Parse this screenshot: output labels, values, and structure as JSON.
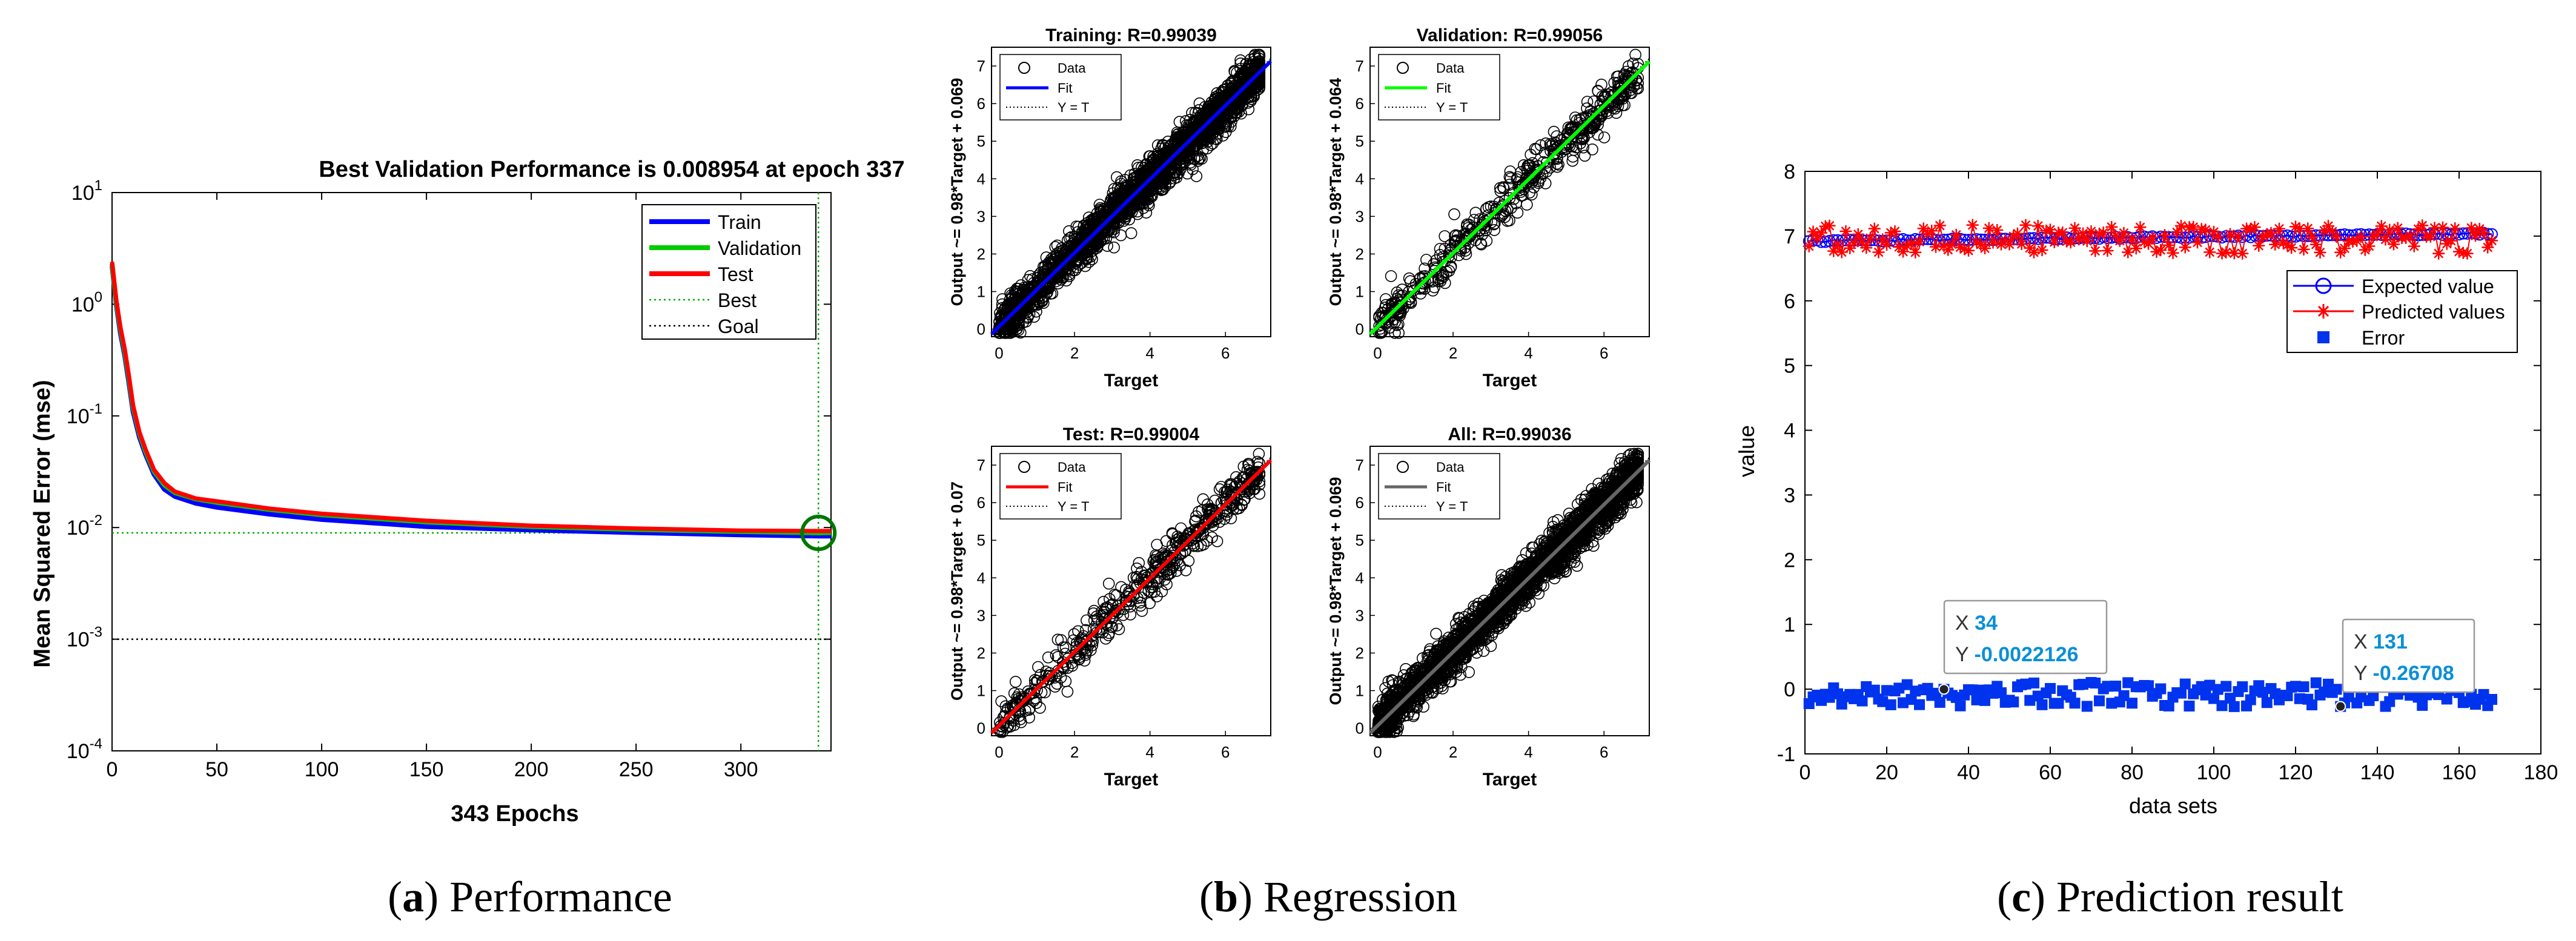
{
  "captions": [
    {
      "letter": "a",
      "text": "Performance"
    },
    {
      "letter": "b",
      "text": "Regression"
    },
    {
      "letter": "c",
      "text": "Prediction result"
    }
  ],
  "chart_data": [
    {
      "id": "performance",
      "type": "line",
      "title": "Best Validation Performance is 0.008954 at epoch 337",
      "xlabel": "343 Epochs",
      "ylabel": "Mean Squared Error  (mse)",
      "yscale": "log",
      "xlim": [
        0,
        343
      ],
      "ylim": [
        0.0001,
        10
      ],
      "xticks": [
        0,
        50,
        100,
        150,
        200,
        250,
        300
      ],
      "yticks": [
        {
          "base": "10",
          "exp": "1",
          "value": 10
        },
        {
          "base": "10",
          "exp": "0",
          "value": 1
        },
        {
          "base": "10",
          "exp": "-1",
          "value": 0.1
        },
        {
          "base": "10",
          "exp": "-2",
          "value": 0.01
        },
        {
          "base": "10",
          "exp": "-3",
          "value": 0.001
        },
        {
          "base": "10",
          "exp": "-4",
          "value": 0.0001
        }
      ],
      "best_epoch": 337,
      "best_value": 0.008954,
      "goal": 0.001,
      "legend_position": "top-right",
      "series": [
        {
          "name": "Train",
          "color": "#0000ff",
          "x": [
            0,
            2,
            4,
            6,
            8,
            10,
            13,
            16,
            20,
            25,
            30,
            40,
            50,
            75,
            100,
            150,
            200,
            250,
            300,
            337,
            343
          ],
          "values": [
            2.2,
            1.0,
            0.55,
            0.35,
            0.2,
            0.11,
            0.065,
            0.045,
            0.03,
            0.022,
            0.019,
            0.0165,
            0.0152,
            0.0132,
            0.0118,
            0.0102,
            0.0095,
            0.009,
            0.0086,
            0.0084,
            0.0084
          ]
        },
        {
          "name": "Validation",
          "color": "#00cc00",
          "x": [
            0,
            2,
            4,
            6,
            8,
            10,
            13,
            16,
            20,
            25,
            30,
            40,
            50,
            75,
            100,
            150,
            200,
            250,
            300,
            337,
            343
          ],
          "values": [
            2.3,
            1.05,
            0.6,
            0.38,
            0.22,
            0.12,
            0.07,
            0.048,
            0.032,
            0.024,
            0.0205,
            0.018,
            0.0168,
            0.0145,
            0.013,
            0.0112,
            0.0102,
            0.0096,
            0.0092,
            0.008954,
            0.009
          ]
        },
        {
          "name": "Test",
          "color": "#ff0000",
          "x": [
            0,
            2,
            4,
            6,
            8,
            10,
            13,
            16,
            20,
            25,
            30,
            40,
            50,
            75,
            100,
            150,
            200,
            250,
            300,
            337,
            343
          ],
          "values": [
            2.4,
            1.1,
            0.62,
            0.4,
            0.23,
            0.125,
            0.072,
            0.05,
            0.033,
            0.025,
            0.021,
            0.0182,
            0.0172,
            0.0148,
            0.0133,
            0.0115,
            0.0104,
            0.0098,
            0.0094,
            0.0093,
            0.0093
          ]
        }
      ],
      "legend": [
        {
          "name": "Train",
          "color": "#0000ff",
          "style": "solid"
        },
        {
          "name": "Validation",
          "color": "#00cc00",
          "style": "solid"
        },
        {
          "name": "Test",
          "color": "#ff0000",
          "style": "solid"
        },
        {
          "name": "Best",
          "color": "#00aa00",
          "style": "dotted"
        },
        {
          "name": "Goal",
          "color": "#000000",
          "style": "dotted"
        }
      ]
    },
    {
      "id": "regression",
      "type": "scatter",
      "subplots": [
        {
          "title": "Training: R=0.99039",
          "ylabel": "Output ~= 0.98*Target + 0.069",
          "fit_color": "#0000ff",
          "slope": 0.98,
          "intercept": 0.069
        },
        {
          "title": "Validation: R=0.99056",
          "ylabel": "Output ~= 0.98*Target + 0.064",
          "fit_color": "#00ff00",
          "slope": 0.98,
          "intercept": 0.064
        },
        {
          "title": "Test: R=0.99004",
          "ylabel": "Output ~= 0.98*Target + 0.07",
          "fit_color": "#ff0000",
          "slope": 0.98,
          "intercept": 0.07
        },
        {
          "title": "All: R=0.99036",
          "ylabel": "Output ~= 0.98*Target + 0.069",
          "fit_color": "#666666",
          "slope": 0.98,
          "intercept": 0.069
        }
      ],
      "xlabel": "Target",
      "xlim": [
        -0.2,
        7.2
      ],
      "ylim": [
        -0.2,
        7.5
      ],
      "xticks": [
        0,
        2,
        4,
        6
      ],
      "yticks": [
        0,
        1,
        2,
        3,
        4,
        5,
        6,
        7
      ],
      "legend": [
        "Data",
        "Fit",
        "Y = T"
      ],
      "legend_position": "top-left"
    },
    {
      "id": "prediction",
      "type": "line",
      "xlabel": "data sets",
      "ylabel": "value",
      "xlim": [
        0,
        180
      ],
      "ylim": [
        -1,
        8
      ],
      "xticks": [
        0,
        20,
        40,
        60,
        80,
        100,
        120,
        140,
        160,
        180
      ],
      "yticks": [
        -1,
        0,
        1,
        2,
        3,
        4,
        5,
        6,
        7,
        8
      ],
      "n_points": 168,
      "series": [
        {
          "name": "Expected value",
          "color": "#0000ff",
          "marker": "circle",
          "approx_level": 6.98
        },
        {
          "name": "Predicted values",
          "color": "#ff0000",
          "marker": "asterisk",
          "approx_range": [
            6.7,
            7.2
          ]
        },
        {
          "name": "Error",
          "color": "#0000ff",
          "marker": "square",
          "approx_range": [
            -0.3,
            0.15
          ]
        }
      ],
      "legend_position": "top-right",
      "datatips": [
        {
          "x_label": "X",
          "x": "34",
          "y_label": "Y",
          "y": "-0.0022126",
          "px": 34,
          "py": -0.0022126
        },
        {
          "x_label": "X",
          "x": "131",
          "y_label": "Y",
          "y": "-0.26708",
          "px": 131,
          "py": -0.26708
        }
      ]
    }
  ]
}
